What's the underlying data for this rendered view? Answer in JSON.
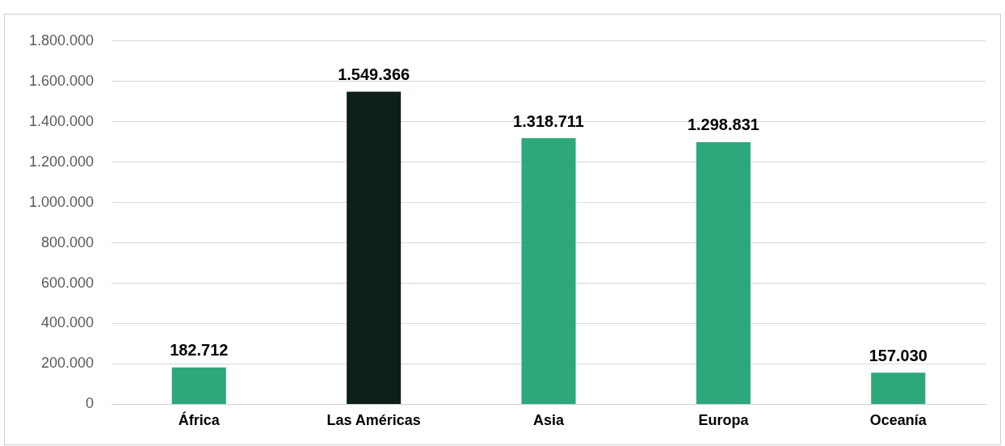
{
  "chart_data": {
    "type": "bar",
    "categories": [
      "África",
      "Las Américas",
      "Asia",
      "Europa",
      "Oceanía"
    ],
    "values": [
      182712,
      1549366,
      1318711,
      1298831,
      157030
    ],
    "colors": [
      "#2ca87a",
      "#0d2019",
      "#2ca87a",
      "#2ca87a",
      "#2ca87a"
    ],
    "value_labels": [
      "182.712",
      "1.549.366",
      "1.318.711",
      "1.298.831",
      "157.030"
    ],
    "ylim": [
      0,
      1800000
    ],
    "yticks": [
      {
        "value": 0,
        "label": "0"
      },
      {
        "value": 200000,
        "label": "200.000"
      },
      {
        "value": 400000,
        "label": "400.000"
      },
      {
        "value": 600000,
        "label": "600.000"
      },
      {
        "value": 800000,
        "label": "800.000"
      },
      {
        "value": 1000000,
        "label": "1.000.000"
      },
      {
        "value": 1200000,
        "label": "1.200.000"
      },
      {
        "value": 1400000,
        "label": "1.400.000"
      },
      {
        "value": 1600000,
        "label": "1.600.000"
      },
      {
        "value": 1800000,
        "label": "1.800.000"
      }
    ],
    "grid": "y",
    "legend": false
  }
}
